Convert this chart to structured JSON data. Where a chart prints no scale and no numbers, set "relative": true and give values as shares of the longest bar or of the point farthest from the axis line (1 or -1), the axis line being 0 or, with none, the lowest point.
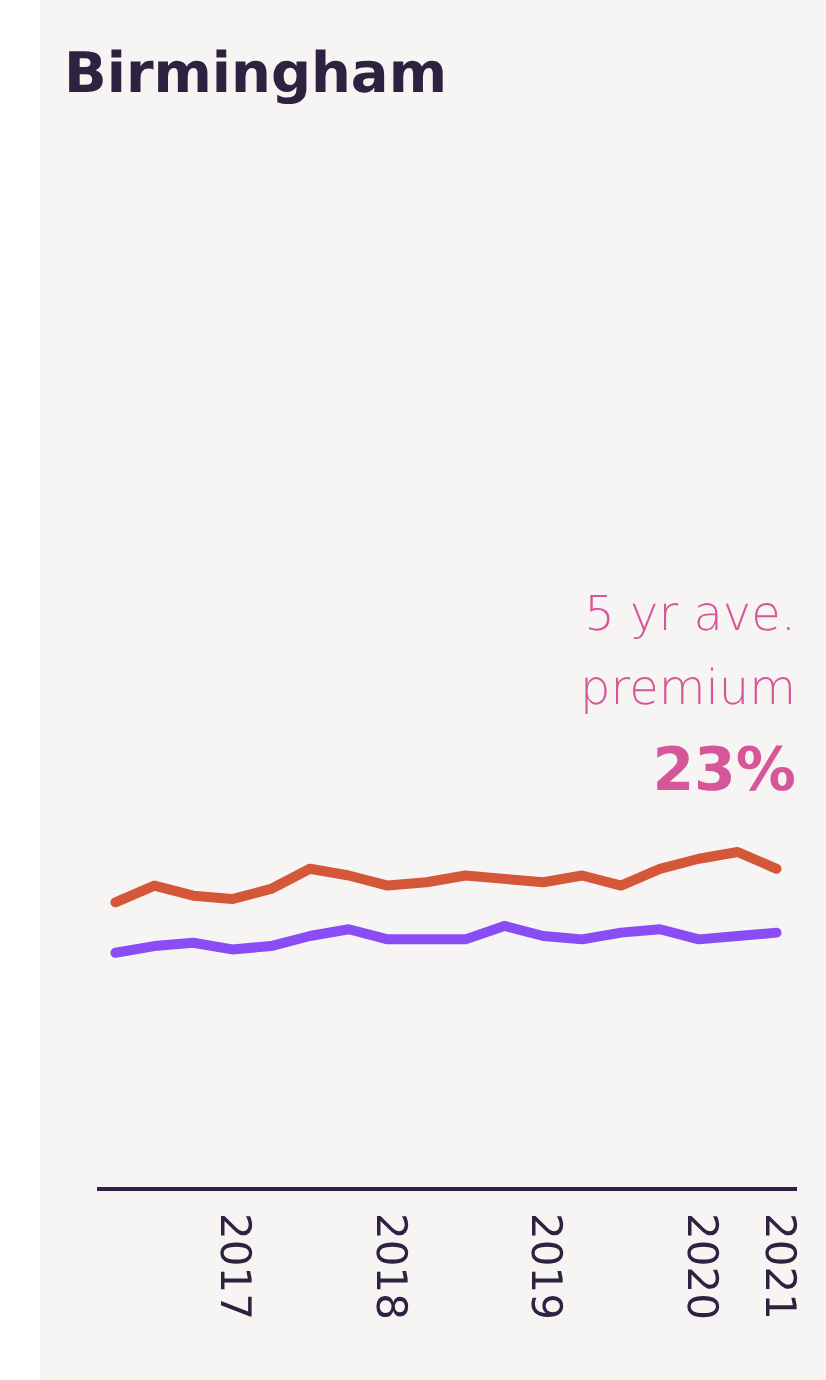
{
  "chart_data": {
    "type": "line",
    "title": "Birmingham",
    "relative": true,
    "categories": [
      null,
      null,
      null,
      "2017",
      null,
      null,
      null,
      "2018",
      null,
      null,
      null,
      "2019",
      null,
      null,
      null,
      "2020",
      null,
      "2021"
    ],
    "annotations": [
      "5 yr ave. premium",
      "23%"
    ],
    "series": [
      {
        "color": "#d4573a",
        "values": [
          0.85,
          0.9,
          0.87,
          0.86,
          0.89,
          0.95,
          0.93,
          0.9,
          0.91,
          0.93,
          0.92,
          0.91,
          0.93,
          0.9,
          0.95,
          0.98,
          1.0,
          0.95
        ]
      },
      {
        "color": "#8a4cf5",
        "values": [
          0.7,
          0.72,
          0.73,
          0.71,
          0.72,
          0.75,
          0.77,
          0.74,
          0.74,
          0.74,
          0.78,
          0.75,
          0.74,
          0.76,
          0.77,
          0.74,
          0.75,
          0.76
        ]
      }
    ],
    "legend": false,
    "grid": false
  }
}
